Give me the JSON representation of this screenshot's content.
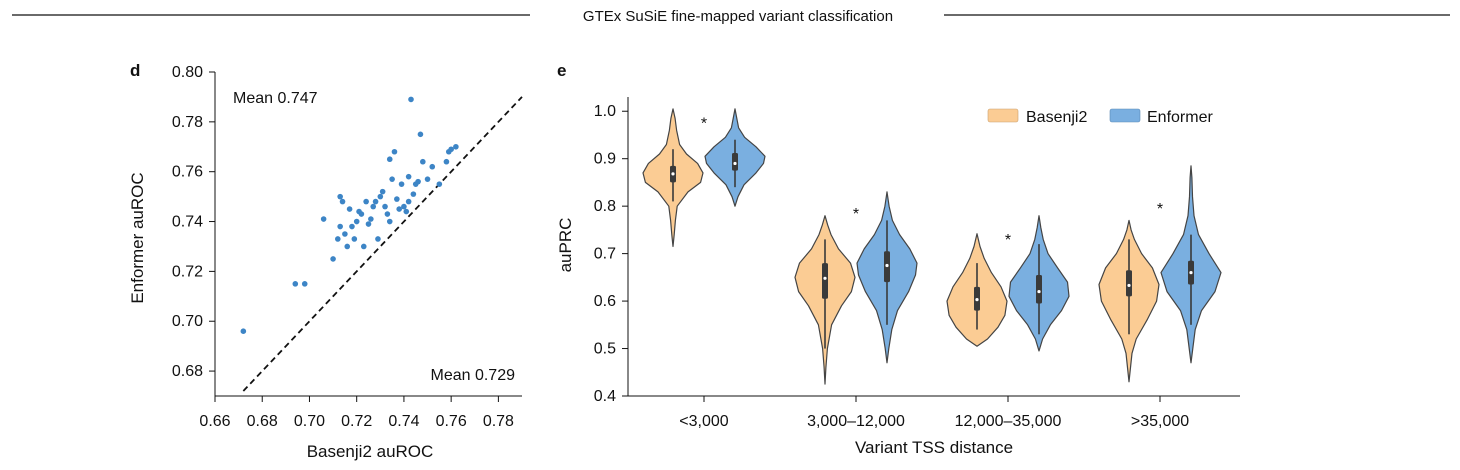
{
  "figure": {
    "title": "GTEx SuSiE fine-mapped variant classification"
  },
  "chart_data": [
    {
      "panel": "d",
      "type": "scatter",
      "xlabel": "Basenji2 auROC",
      "ylabel": "Enformer auROC",
      "xlim": [
        0.66,
        0.79
      ],
      "ylim": [
        0.67,
        0.8
      ],
      "xticks": [
        "0.66",
        "0.68",
        "0.70",
        "0.72",
        "0.74",
        "0.76",
        "0.78"
      ],
      "yticks": [
        "0.68",
        "0.70",
        "0.72",
        "0.74",
        "0.76",
        "0.78",
        "0.80"
      ],
      "annotations": {
        "top_left": "Mean 0.747",
        "bottom_right": "Mean 0.729"
      },
      "diagonal": {
        "style": "dashed",
        "from": [
          0.672,
          0.672
        ],
        "to": [
          0.79,
          0.79
        ]
      },
      "point_color": "#3d85c6",
      "points": [
        [
          0.672,
          0.696
        ],
        [
          0.694,
          0.715
        ],
        [
          0.698,
          0.715
        ],
        [
          0.706,
          0.741
        ],
        [
          0.71,
          0.725
        ],
        [
          0.712,
          0.733
        ],
        [
          0.713,
          0.738
        ],
        [
          0.713,
          0.75
        ],
        [
          0.714,
          0.748
        ],
        [
          0.715,
          0.735
        ],
        [
          0.716,
          0.73
        ],
        [
          0.717,
          0.745
        ],
        [
          0.718,
          0.738
        ],
        [
          0.719,
          0.733
        ],
        [
          0.72,
          0.74
        ],
        [
          0.721,
          0.744
        ],
        [
          0.722,
          0.743
        ],
        [
          0.723,
          0.73
        ],
        [
          0.724,
          0.748
        ],
        [
          0.725,
          0.739
        ],
        [
          0.726,
          0.741
        ],
        [
          0.727,
          0.746
        ],
        [
          0.728,
          0.748
        ],
        [
          0.729,
          0.733
        ],
        [
          0.73,
          0.75
        ],
        [
          0.731,
          0.752
        ],
        [
          0.732,
          0.746
        ],
        [
          0.733,
          0.743
        ],
        [
          0.734,
          0.74
        ],
        [
          0.734,
          0.765
        ],
        [
          0.735,
          0.757
        ],
        [
          0.736,
          0.768
        ],
        [
          0.737,
          0.749
        ],
        [
          0.738,
          0.745
        ],
        [
          0.739,
          0.755
        ],
        [
          0.74,
          0.746
        ],
        [
          0.741,
          0.744
        ],
        [
          0.742,
          0.748
        ],
        [
          0.742,
          0.758
        ],
        [
          0.743,
          0.789
        ],
        [
          0.744,
          0.751
        ],
        [
          0.745,
          0.755
        ],
        [
          0.746,
          0.756
        ],
        [
          0.747,
          0.775
        ],
        [
          0.748,
          0.764
        ],
        [
          0.75,
          0.757
        ],
        [
          0.752,
          0.762
        ],
        [
          0.755,
          0.755
        ],
        [
          0.758,
          0.764
        ],
        [
          0.759,
          0.768
        ],
        [
          0.76,
          0.769
        ],
        [
          0.762,
          0.77
        ]
      ]
    },
    {
      "panel": "e",
      "type": "violin",
      "xlabel": "Variant TSS distance",
      "ylabel": "auPRC",
      "ylim": [
        0.4,
        1.03
      ],
      "yticks": [
        "0.4",
        "0.5",
        "0.6",
        "0.7",
        "0.8",
        "0.9",
        "1.0"
      ],
      "categories": [
        "<3,000",
        "3,000–12,000",
        "12,000–35,000",
        ">35,000"
      ],
      "significance_marker": "*",
      "legend": {
        "position": "top-right",
        "entries": [
          "Basenji2",
          "Enformer"
        ]
      },
      "series": [
        {
          "name": "Basenji2",
          "color": "#fbcc94",
          "violins": [
            {
              "min": 0.715,
              "max": 1.005,
              "q1": 0.85,
              "median": 0.868,
              "q3": 0.885,
              "wmin": 0.81,
              "wmax": 0.92,
              "profile": [
                [
                  0.715,
                  0
                ],
                [
                  0.74,
                  0.04
                ],
                [
                  0.77,
                  0.08
                ],
                [
                  0.8,
                  0.14
                ],
                [
                  0.83,
                  0.5
                ],
                [
                  0.85,
                  0.92
                ],
                [
                  0.87,
                  1.0
                ],
                [
                  0.89,
                  0.82
                ],
                [
                  0.91,
                  0.45
                ],
                [
                  0.93,
                  0.22
                ],
                [
                  0.96,
                  0.12
                ],
                [
                  0.985,
                  0.07
                ],
                [
                  1.005,
                  0
                ]
              ]
            },
            {
              "min": 0.425,
              "max": 0.78,
              "q1": 0.605,
              "median": 0.648,
              "q3": 0.68,
              "wmin": 0.5,
              "wmax": 0.73,
              "profile": [
                [
                  0.425,
                  0
                ],
                [
                  0.46,
                  0.03
                ],
                [
                  0.5,
                  0.08
                ],
                [
                  0.55,
                  0.22
                ],
                [
                  0.59,
                  0.55
                ],
                [
                  0.62,
                  0.88
                ],
                [
                  0.65,
                  1.0
                ],
                [
                  0.68,
                  0.85
                ],
                [
                  0.71,
                  0.45
                ],
                [
                  0.74,
                  0.2
                ],
                [
                  0.76,
                  0.09
                ],
                [
                  0.78,
                  0
                ]
              ]
            },
            {
              "min": 0.505,
              "max": 0.742,
              "q1": 0.58,
              "median": 0.603,
              "q3": 0.63,
              "wmin": 0.54,
              "wmax": 0.68,
              "profile": [
                [
                  0.505,
                  0
                ],
                [
                  0.52,
                  0.35
                ],
                [
                  0.545,
                  0.7
                ],
                [
                  0.57,
                  0.93
                ],
                [
                  0.6,
                  1.0
                ],
                [
                  0.63,
                  0.8
                ],
                [
                  0.66,
                  0.48
                ],
                [
                  0.69,
                  0.24
                ],
                [
                  0.715,
                  0.1
                ],
                [
                  0.742,
                  0
                ]
              ]
            },
            {
              "min": 0.43,
              "max": 0.77,
              "q1": 0.61,
              "median": 0.633,
              "q3": 0.665,
              "wmin": 0.53,
              "wmax": 0.73,
              "profile": [
                [
                  0.43,
                  0
                ],
                [
                  0.46,
                  0.05
                ],
                [
                  0.49,
                  0.1
                ],
                [
                  0.52,
                  0.24
                ],
                [
                  0.56,
                  0.6
                ],
                [
                  0.6,
                  0.92
                ],
                [
                  0.635,
                  1.0
                ],
                [
                  0.67,
                  0.78
                ],
                [
                  0.7,
                  0.42
                ],
                [
                  0.73,
                  0.18
                ],
                [
                  0.75,
                  0.07
                ],
                [
                  0.77,
                  0
                ]
              ]
            }
          ]
        },
        {
          "name": "Enformer",
          "color": "#7aafe0",
          "violins": [
            {
              "min": 0.8,
              "max": 1.005,
              "q1": 0.875,
              "median": 0.89,
              "q3": 0.912,
              "wmin": 0.84,
              "wmax": 0.94,
              "profile": [
                [
                  0.8,
                  0
                ],
                [
                  0.82,
                  0.1
                ],
                [
                  0.845,
                  0.3
                ],
                [
                  0.87,
                  0.7
                ],
                [
                  0.89,
                  0.95
                ],
                [
                  0.905,
                  1.0
                ],
                [
                  0.925,
                  0.7
                ],
                [
                  0.945,
                  0.32
                ],
                [
                  0.965,
                  0.12
                ],
                [
                  0.985,
                  0.06
                ],
                [
                  1.005,
                  0
                ]
              ]
            },
            {
              "min": 0.47,
              "max": 0.83,
              "q1": 0.64,
              "median": 0.675,
              "q3": 0.705,
              "wmin": 0.55,
              "wmax": 0.77,
              "profile": [
                [
                  0.47,
                  0
                ],
                [
                  0.5,
                  0.06
                ],
                [
                  0.54,
                  0.16
                ],
                [
                  0.58,
                  0.35
                ],
                [
                  0.62,
                  0.72
                ],
                [
                  0.655,
                  0.95
                ],
                [
                  0.68,
                  1.0
                ],
                [
                  0.71,
                  0.76
                ],
                [
                  0.74,
                  0.42
                ],
                [
                  0.77,
                  0.18
                ],
                [
                  0.8,
                  0.07
                ],
                [
                  0.83,
                  0
                ]
              ]
            },
            {
              "min": 0.495,
              "max": 0.78,
              "q1": 0.595,
              "median": 0.62,
              "q3": 0.655,
              "wmin": 0.53,
              "wmax": 0.72,
              "profile": [
                [
                  0.495,
                  0
                ],
                [
                  0.52,
                  0.12
                ],
                [
                  0.55,
                  0.38
                ],
                [
                  0.58,
                  0.75
                ],
                [
                  0.61,
                  1.0
                ],
                [
                  0.64,
                  0.95
                ],
                [
                  0.67,
                  0.62
                ],
                [
                  0.7,
                  0.3
                ],
                [
                  0.73,
                  0.14
                ],
                [
                  0.755,
                  0.06
                ],
                [
                  0.78,
                  0
                ]
              ]
            },
            {
              "min": 0.47,
              "max": 0.885,
              "q1": 0.635,
              "median": 0.66,
              "q3": 0.685,
              "wmin": 0.55,
              "wmax": 0.74,
              "profile": [
                [
                  0.47,
                  0
                ],
                [
                  0.5,
                  0.06
                ],
                [
                  0.54,
                  0.14
                ],
                [
                  0.58,
                  0.35
                ],
                [
                  0.62,
                  0.8
                ],
                [
                  0.66,
                  1.0
                ],
                [
                  0.7,
                  0.6
                ],
                [
                  0.74,
                  0.25
                ],
                [
                  0.78,
                  0.1
                ],
                [
                  0.82,
                  0.05
                ],
                [
                  0.86,
                  0.03
                ],
                [
                  0.885,
                  0
                ]
              ]
            }
          ]
        }
      ]
    }
  ]
}
